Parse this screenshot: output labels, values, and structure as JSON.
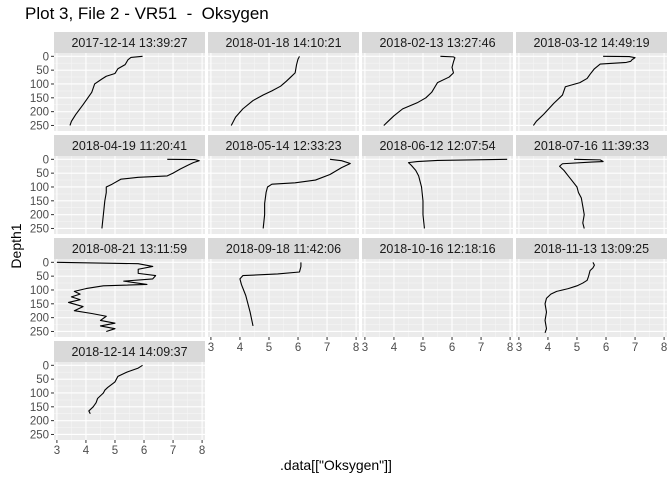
{
  "title": "Plot 3, File 2 - VR51  -  Oksygen",
  "xlabel": ".data[[\"Oksygen\"]]",
  "ylabel": "Depth1",
  "chart_data": {
    "type": "line",
    "facet_layout": {
      "ncol": 4,
      "nrow": 4
    },
    "xlim": [
      2.9,
      8.1
    ],
    "ylim": [
      270,
      -12
    ],
    "y_reversed": true,
    "x_ticks": [
      3,
      4,
      5,
      6,
      7,
      8
    ],
    "y_ticks": [
      0,
      50,
      100,
      150,
      200,
      250
    ],
    "x_tick_labels": [
      "3",
      "4",
      "5",
      "6",
      "7",
      "8"
    ],
    "y_tick_labels": [
      "0",
      "50",
      "100",
      "150",
      "200",
      "250"
    ],
    "grid": true,
    "panels": [
      {
        "label": "2017-12-14 13:39:27",
        "series": [
          [
            5.95,
            0
          ],
          [
            5.55,
            4
          ],
          [
            5.45,
            12
          ],
          [
            5.35,
            30
          ],
          [
            5.1,
            45
          ],
          [
            5.0,
            62
          ],
          [
            4.7,
            72
          ],
          [
            4.55,
            82
          ],
          [
            4.3,
            100
          ],
          [
            4.2,
            130
          ],
          [
            4.1,
            145
          ],
          [
            3.9,
            175
          ],
          [
            3.65,
            210
          ],
          [
            3.5,
            235
          ],
          [
            3.45,
            250
          ]
        ]
      },
      {
        "label": "2018-01-18 14:10:21",
        "series": [
          [
            6.05,
            0
          ],
          [
            6.0,
            10
          ],
          [
            5.95,
            30
          ],
          [
            5.9,
            60
          ],
          [
            5.75,
            75
          ],
          [
            5.6,
            90
          ],
          [
            5.4,
            108
          ],
          [
            5.1,
            125
          ],
          [
            4.8,
            140
          ],
          [
            4.45,
            160
          ],
          [
            4.1,
            190
          ],
          [
            3.85,
            220
          ],
          [
            3.75,
            240
          ],
          [
            3.7,
            250
          ]
        ]
      },
      {
        "label": "2018-02-13 13:27:46",
        "series": [
          [
            5.6,
            0
          ],
          [
            6.05,
            2
          ],
          [
            6.1,
            5
          ],
          [
            6.05,
            20
          ],
          [
            6.0,
            40
          ],
          [
            6.05,
            60
          ],
          [
            5.9,
            75
          ],
          [
            5.5,
            95
          ],
          [
            5.3,
            130
          ],
          [
            5.1,
            150
          ],
          [
            4.8,
            168
          ],
          [
            4.3,
            190
          ],
          [
            4.0,
            215
          ],
          [
            3.8,
            235
          ],
          [
            3.65,
            250
          ]
        ]
      },
      {
        "label": "2018-03-12 14:49:19",
        "series": [
          [
            5.9,
            0
          ],
          [
            6.8,
            1
          ],
          [
            7.0,
            5
          ],
          [
            6.9,
            12
          ],
          [
            6.85,
            18
          ],
          [
            6.7,
            22
          ],
          [
            5.8,
            28
          ],
          [
            5.6,
            45
          ],
          [
            5.45,
            65
          ],
          [
            5.35,
            80
          ],
          [
            5.1,
            95
          ],
          [
            4.6,
            110
          ],
          [
            4.5,
            140
          ],
          [
            4.2,
            170
          ],
          [
            3.85,
            210
          ],
          [
            3.6,
            235
          ],
          [
            3.5,
            250
          ]
        ]
      },
      {
        "label": "2018-04-19 11:20:41",
        "series": [
          [
            6.8,
            0
          ],
          [
            7.75,
            1
          ],
          [
            7.9,
            5
          ],
          [
            7.7,
            12
          ],
          [
            7.5,
            22
          ],
          [
            7.25,
            35
          ],
          [
            7.0,
            50
          ],
          [
            6.8,
            60
          ],
          [
            5.8,
            65
          ],
          [
            5.2,
            72
          ],
          [
            4.9,
            90
          ],
          [
            4.7,
            100
          ],
          [
            4.7,
            120
          ],
          [
            4.65,
            150
          ],
          [
            4.6,
            200
          ],
          [
            4.55,
            250
          ]
        ]
      },
      {
        "label": "2018-05-14 12:33:23",
        "series": [
          [
            7.1,
            0
          ],
          [
            7.5,
            5
          ],
          [
            7.8,
            15
          ],
          [
            7.5,
            30
          ],
          [
            7.1,
            55
          ],
          [
            6.6,
            75
          ],
          [
            5.9,
            85
          ],
          [
            5.1,
            90
          ],
          [
            4.95,
            100
          ],
          [
            4.9,
            120
          ],
          [
            4.85,
            160
          ],
          [
            4.85,
            200
          ],
          [
            4.8,
            250
          ]
        ]
      },
      {
        "label": "2018-06-12 12:07:54",
        "series": [
          [
            7.9,
            0
          ],
          [
            5.5,
            4
          ],
          [
            4.8,
            8
          ],
          [
            4.5,
            12
          ],
          [
            4.6,
            22
          ],
          [
            4.75,
            40
          ],
          [
            4.85,
            60
          ],
          [
            4.95,
            100
          ],
          [
            5.0,
            150
          ],
          [
            5.0,
            200
          ],
          [
            5.05,
            250
          ]
        ]
      },
      {
        "label": "2018-07-16 11:39:33",
        "series": [
          [
            4.9,
            0
          ],
          [
            5.8,
            2
          ],
          [
            5.9,
            8
          ],
          [
            5.5,
            10
          ],
          [
            4.5,
            16
          ],
          [
            4.4,
            25
          ],
          [
            4.55,
            40
          ],
          [
            4.7,
            60
          ],
          [
            4.85,
            80
          ],
          [
            5.0,
            100
          ],
          [
            5.05,
            120
          ],
          [
            5.15,
            140
          ],
          [
            5.2,
            170
          ],
          [
            5.25,
            200
          ],
          [
            5.2,
            230
          ],
          [
            5.25,
            250
          ]
        ]
      },
      {
        "label": "2018-08-21 13:11:59",
        "series": [
          [
            3.0,
            0
          ],
          [
            5.8,
            5
          ],
          [
            6.3,
            15
          ],
          [
            5.8,
            25
          ],
          [
            5.8,
            40
          ],
          [
            6.4,
            48
          ],
          [
            6.3,
            60
          ],
          [
            5.3,
            68
          ],
          [
            6.1,
            80
          ],
          [
            4.6,
            85
          ],
          [
            4.0,
            95
          ],
          [
            3.6,
            105
          ],
          [
            3.8,
            115
          ],
          [
            3.5,
            125
          ],
          [
            3.8,
            135
          ],
          [
            3.4,
            145
          ],
          [
            3.9,
            160
          ],
          [
            3.6,
            175
          ],
          [
            4.2,
            185
          ],
          [
            4.7,
            195
          ],
          [
            4.5,
            210
          ],
          [
            5.0,
            220
          ],
          [
            4.5,
            230
          ],
          [
            5.0,
            240
          ],
          [
            4.7,
            250
          ]
        ]
      },
      {
        "label": "2018-09-18 11:42:06",
        "series": [
          [
            6.1,
            0
          ],
          [
            6.1,
            15
          ],
          [
            6.05,
            35
          ],
          [
            5.3,
            42
          ],
          [
            4.1,
            48
          ],
          [
            4.0,
            60
          ],
          [
            4.05,
            80
          ],
          [
            4.2,
            120
          ],
          [
            4.35,
            180
          ],
          [
            4.45,
            230
          ]
        ]
      },
      {
        "label": "2018-10-16 12:18:16",
        "series": []
      },
      {
        "label": "2018-11-13 13:09:25",
        "series": [
          [
            5.55,
            0
          ],
          [
            5.6,
            10
          ],
          [
            5.55,
            20
          ],
          [
            5.45,
            30
          ],
          [
            5.4,
            50
          ],
          [
            5.35,
            65
          ],
          [
            5.2,
            75
          ],
          [
            5.0,
            85
          ],
          [
            4.7,
            95
          ],
          [
            4.3,
            105
          ],
          [
            4.1,
            115
          ],
          [
            3.95,
            130
          ],
          [
            3.9,
            150
          ],
          [
            3.95,
            180
          ],
          [
            3.9,
            210
          ],
          [
            3.95,
            240
          ],
          [
            3.9,
            255
          ]
        ]
      },
      {
        "label": "2018-12-14 14:09:37",
        "series": [
          [
            5.95,
            0
          ],
          [
            5.8,
            10
          ],
          [
            5.4,
            25
          ],
          [
            5.1,
            40
          ],
          [
            5.0,
            60
          ],
          [
            4.75,
            80
          ],
          [
            4.65,
            90
          ],
          [
            4.6,
            100
          ],
          [
            4.5,
            110
          ],
          [
            4.4,
            120
          ],
          [
            4.35,
            135
          ],
          [
            4.25,
            150
          ],
          [
            4.1,
            165
          ],
          [
            4.15,
            175
          ]
        ]
      }
    ]
  }
}
